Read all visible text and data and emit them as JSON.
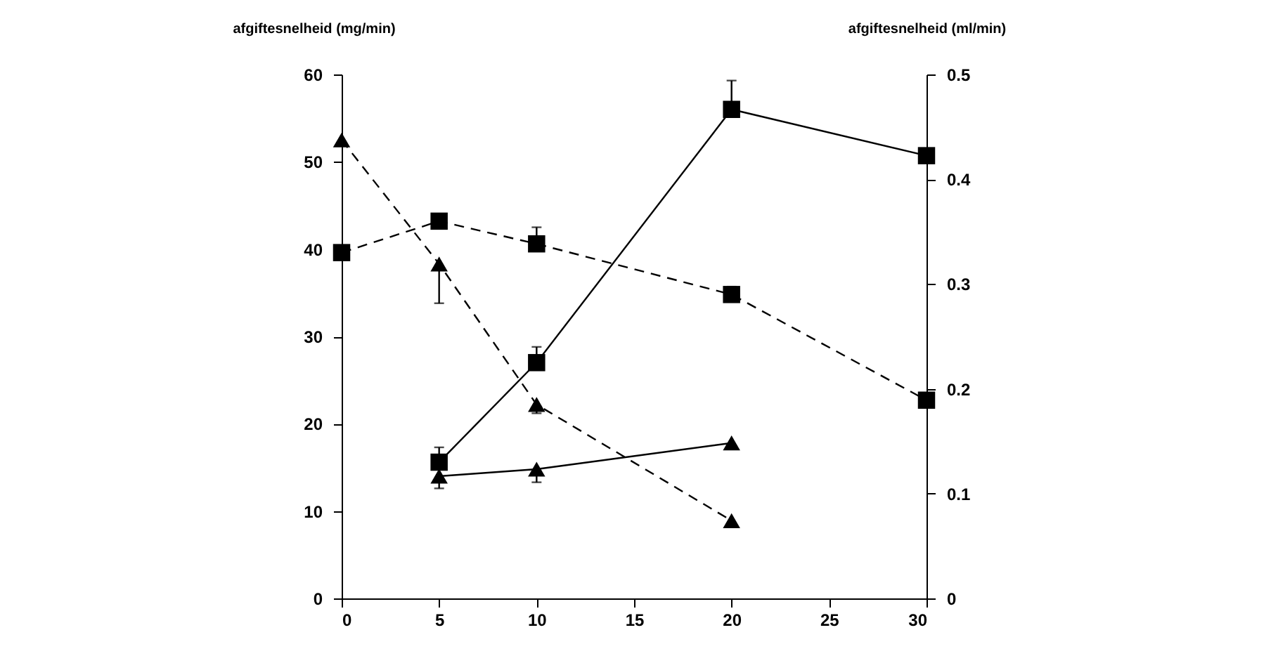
{
  "chart_data": {
    "type": "line",
    "ylabel": "afgiftesnelheid (mg/min)",
    "y2label": "afgiftesnelheid (ml/min)",
    "xlim": [
      0,
      30
    ],
    "xticks": [
      0,
      5,
      10,
      15,
      20,
      25,
      30
    ],
    "ylim": [
      0,
      60
    ],
    "yticks": [
      0,
      10,
      20,
      30,
      40,
      50,
      60
    ],
    "y2lim": [
      0,
      0.5
    ],
    "y2ticks": [
      0,
      0.1,
      0.2,
      0.3,
      0.4,
      0.5
    ],
    "grid": false,
    "series": [
      {
        "color": "#000000",
        "marker": "square",
        "line_style": "solid",
        "x": [
          5,
          10,
          20,
          30
        ],
        "values": [
          15.6,
          27,
          56,
          50.7
        ],
        "errors": [
          [
            15.6,
            17.3
          ],
          [
            27,
            28.8
          ],
          [
            56,
            59.3
          ],
          null
        ]
      },
      {
        "color": "#000000",
        "marker": "square",
        "line_style": "dashed",
        "x": [
          0,
          5,
          10,
          20,
          30
        ],
        "values": [
          39.6,
          43.2,
          40.6,
          34.8,
          22.7
        ],
        "errors": [
          null,
          null,
          [
            40.6,
            42.5
          ],
          [
            34.8,
            35.7
          ],
          null
        ]
      },
      {
        "color": "#000000",
        "marker": "triangle",
        "line_style": "solid",
        "x": [
          5,
          10,
          20
        ],
        "values": [
          14,
          14.8,
          17.8
        ],
        "errors": [
          [
            12.6,
            14
          ],
          [
            13.3,
            14.8
          ],
          null
        ]
      },
      {
        "color": "#000000",
        "marker": "triangle",
        "line_style": "dashed",
        "x": [
          0,
          5,
          10,
          20
        ],
        "values": [
          52.5,
          38.3,
          22.2,
          8.9
        ],
        "errors": [
          null,
          [
            33.8,
            38.3
          ],
          [
            21.2,
            22.2
          ],
          null
        ]
      }
    ]
  }
}
